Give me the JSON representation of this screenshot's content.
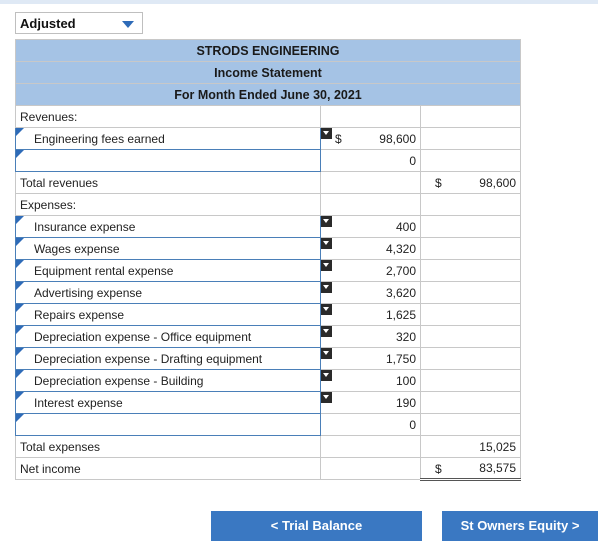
{
  "dropdown": {
    "selected": "Adjusted"
  },
  "statement": {
    "company": "STRODS ENGINEERING",
    "title": "Income Statement",
    "period": "For Month Ended June 30, 2021",
    "revenues_label": "Revenues:",
    "revenue_items": [
      {
        "label": "Engineering fees earned",
        "currency": "$",
        "amount": "98,600"
      },
      {
        "label": "",
        "currency": "",
        "amount": "0"
      }
    ],
    "total_revenues_label": "Total revenues",
    "total_revenues_currency": "$",
    "total_revenues": "98,600",
    "expenses_label": "Expenses:",
    "expense_items": [
      {
        "label": "Insurance expense",
        "amount": "400"
      },
      {
        "label": "Wages expense",
        "amount": "4,320"
      },
      {
        "label": "Equipment rental expense",
        "amount": "2,700"
      },
      {
        "label": "Advertising expense",
        "amount": "3,620"
      },
      {
        "label": "Repairs expense",
        "amount": "1,625"
      },
      {
        "label": "Depreciation expense - Office equipment",
        "amount": "320"
      },
      {
        "label": "Depreciation expense - Drafting equipment",
        "amount": "1,750"
      },
      {
        "label": "Depreciation expense - Building",
        "amount": "100"
      },
      {
        "label": "Interest expense",
        "amount": "190"
      },
      {
        "label": "",
        "amount": "0"
      }
    ],
    "total_expenses_label": "Total expenses",
    "total_expenses": "15,025",
    "net_income_label": "Net income",
    "net_income_currency": "$",
    "net_income": "83,575"
  },
  "nav": {
    "prev_label": "< Trial Balance",
    "next_label": "St Owners Equity >"
  }
}
